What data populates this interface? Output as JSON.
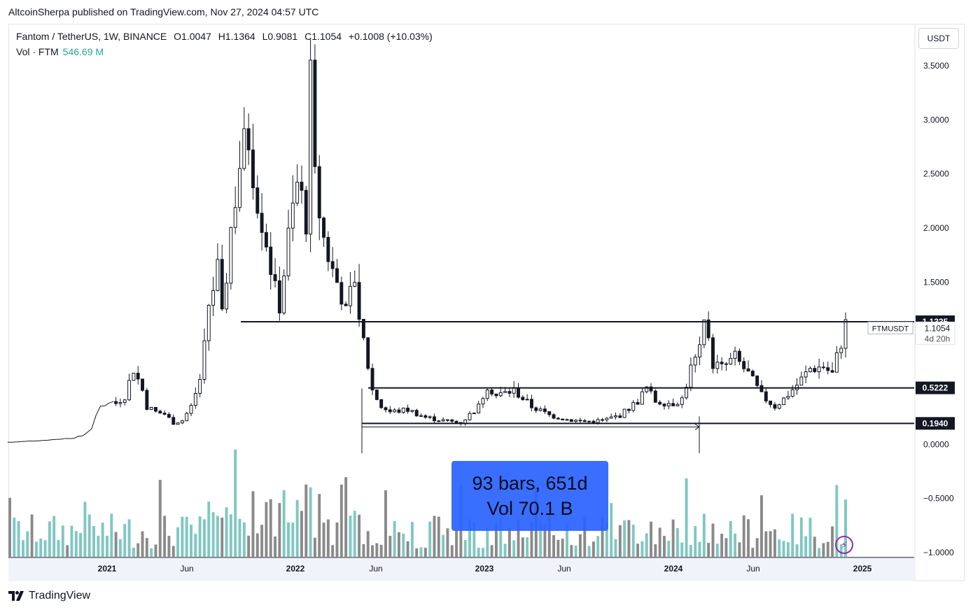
{
  "publisher": "AltcoinSherpa published on TradingView.com, Nov 27, 2024 04:57 UTC",
  "legend": {
    "symbol": "Fantom / TetherUS, 1W, BINANCE",
    "open": "O1.0047",
    "high": "H1.1364",
    "low": "L0.9081",
    "close": "C1.1054",
    "change": "+0.1008 (+10.03%)",
    "vol_label": "Vol · FTM",
    "vol_value": "546.69 M"
  },
  "currency_button": "USDT",
  "footer_brand": "TradingView",
  "measure": {
    "line1": "93 bars, 651d",
    "line2": "Vol 70.1 B"
  },
  "price_labels": {
    "level_high": "1.1335",
    "last_price": "1.1054",
    "countdown": "4d 20h",
    "level_mid": "0.5222",
    "level_low": "0.1940",
    "symbol_tag": "FTMUSDT"
  },
  "colors": {
    "up": "#ffffff",
    "down": "#131722",
    "vol_up": "#7fc8c1",
    "vol_down": "#8a8a8a",
    "measure": "#2962ff"
  },
  "chart_data": {
    "type": "candlestick",
    "title": "Fantom / TetherUS, 1W, BINANCE",
    "y_ticks": [
      "3.5000",
      "3.0000",
      "2.5000",
      "2.0000",
      "1.5000",
      "0.0000",
      "−0.5000",
      "−1.0000"
    ],
    "y_tick_values": [
      3.5,
      3.0,
      2.5,
      2.0,
      1.5,
      0.0,
      -0.5,
      -1.0
    ],
    "ylim": [
      -1.0,
      3.5
    ],
    "x_ticks": [
      "2021",
      "Jun",
      "2022",
      "Jun",
      "2023",
      "Jun",
      "2024",
      "Jun",
      "2025"
    ],
    "horizontal_levels": [
      1.1335,
      0.5222,
      0.194
    ],
    "last_close": 1.1054,
    "price_path": [
      [
        0,
        0.02
      ],
      [
        8,
        0.04
      ],
      [
        14,
        0.06
      ],
      [
        16,
        0.08
      ],
      [
        18,
        0.15
      ],
      [
        20,
        0.35
      ],
      [
        22,
        0.4
      ],
      [
        24,
        0.38
      ],
      [
        26,
        0.45
      ],
      [
        28,
        0.7
      ],
      [
        30,
        0.5
      ],
      [
        31,
        0.35
      ],
      [
        33,
        0.3
      ],
      [
        35,
        0.28
      ],
      [
        37,
        0.2
      ],
      [
        39,
        0.22
      ],
      [
        41,
        0.35
      ],
      [
        43,
        0.6
      ],
      [
        45,
        1.3
      ],
      [
        47,
        1.6
      ],
      [
        48,
        1.15
      ],
      [
        50,
        2.0
      ],
      [
        52,
        2.6
      ],
      [
        54,
        2.85
      ],
      [
        56,
        2.3
      ],
      [
        58,
        1.9
      ],
      [
        60,
        1.4
      ],
      [
        61,
        1.3
      ],
      [
        63,
        1.9
      ],
      [
        65,
        2.4
      ],
      [
        67,
        2.1
      ],
      [
        68,
        3.3
      ],
      [
        69,
        2.4
      ],
      [
        71,
        1.9
      ],
      [
        73,
        1.6
      ],
      [
        75,
        1.4
      ],
      [
        76,
        1.2
      ],
      [
        78,
        1.55
      ],
      [
        79,
        1.2
      ],
      [
        80,
        0.95
      ],
      [
        82,
        0.5
      ],
      [
        84,
        0.35
      ],
      [
        86,
        0.3
      ],
      [
        90,
        0.32
      ],
      [
        94,
        0.25
      ],
      [
        98,
        0.22
      ],
      [
        102,
        0.2
      ],
      [
        106,
        0.35
      ],
      [
        108,
        0.55
      ],
      [
        110,
        0.45
      ],
      [
        114,
        0.5
      ],
      [
        118,
        0.35
      ],
      [
        122,
        0.27
      ],
      [
        126,
        0.23
      ],
      [
        130,
        0.21
      ],
      [
        134,
        0.22
      ],
      [
        138,
        0.27
      ],
      [
        142,
        0.4
      ],
      [
        144,
        0.52
      ],
      [
        146,
        0.4
      ],
      [
        150,
        0.38
      ],
      [
        152,
        0.42
      ],
      [
        154,
        0.7
      ],
      [
        156,
        0.85
      ],
      [
        157,
        1.1
      ],
      [
        159,
        0.75
      ],
      [
        161,
        0.7
      ],
      [
        164,
        0.8
      ],
      [
        167,
        0.65
      ],
      [
        170,
        0.45
      ],
      [
        173,
        0.35
      ],
      [
        175,
        0.42
      ],
      [
        178,
        0.55
      ],
      [
        181,
        0.7
      ],
      [
        184,
        0.72
      ],
      [
        186,
        0.65
      ],
      [
        188,
        0.95
      ],
      [
        189,
        1.1054
      ]
    ]
  }
}
